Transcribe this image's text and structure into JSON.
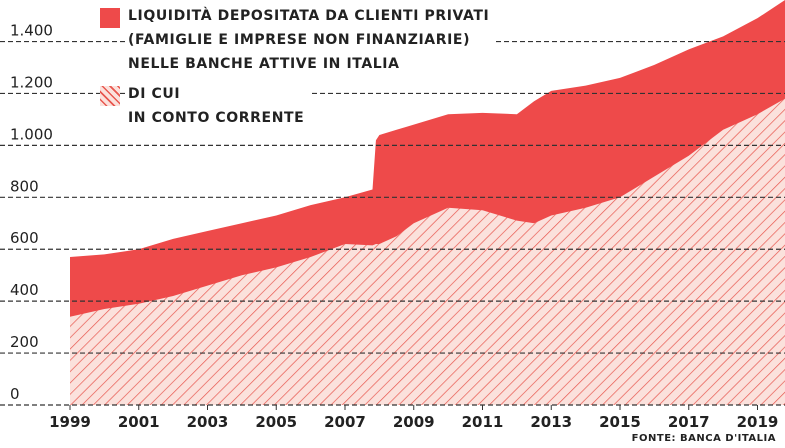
{
  "chart_data": {
    "type": "area",
    "source": "FONTE: BANCA D'ITALIA",
    "x": [
      1999,
      2000,
      2001,
      2002,
      2003,
      2004,
      2005,
      2006,
      2007,
      2007.8,
      2007.9,
      2008,
      2008.5,
      2009,
      2010,
      2011,
      2012,
      2012.5,
      2013,
      2014,
      2015,
      2016,
      2017,
      2018,
      2019,
      2019.8
    ],
    "series": [
      {
        "name": "LIQUIDITÀ DEPOSITATA DA CLIENTI PRIVATI\n(FAMIGLIE E IMPRESE NON FINANZIARIE)\nNELLE BANCHE ATTIVE IN ITALIA",
        "color": "#ee4a4a",
        "pattern": "solid",
        "values": [
          570,
          580,
          600,
          640,
          670,
          700,
          730,
          770,
          800,
          830,
          1020,
          1040,
          1060,
          1080,
          1120,
          1125,
          1120,
          1170,
          1210,
          1230,
          1260,
          1310,
          1370,
          1420,
          1490,
          1560
        ]
      },
      {
        "name": "DI CUI\nIN CONTO CORRENTE",
        "color": "#e8574f",
        "pattern": "hatch",
        "values": [
          340,
          370,
          390,
          420,
          460,
          500,
          530,
          570,
          620,
          615,
          620,
          620,
          650,
          700,
          760,
          750,
          710,
          700,
          730,
          760,
          800,
          880,
          960,
          1060,
          1120,
          1180
        ]
      }
    ],
    "xlim": [
      1999,
      2019.8
    ],
    "xticks": [
      1999,
      2001,
      2003,
      2005,
      2007,
      2009,
      2011,
      2013,
      2015,
      2017,
      2019
    ],
    "ylim": [
      0,
      1560
    ],
    "yticks": [
      0,
      200,
      400,
      600,
      800,
      {
        "value": 1000,
        "label": "1.000"
      },
      {
        "value": 1200,
        "label": "1.200"
      },
      {
        "value": 1400,
        "label": "1.400"
      }
    ],
    "grid": true
  }
}
